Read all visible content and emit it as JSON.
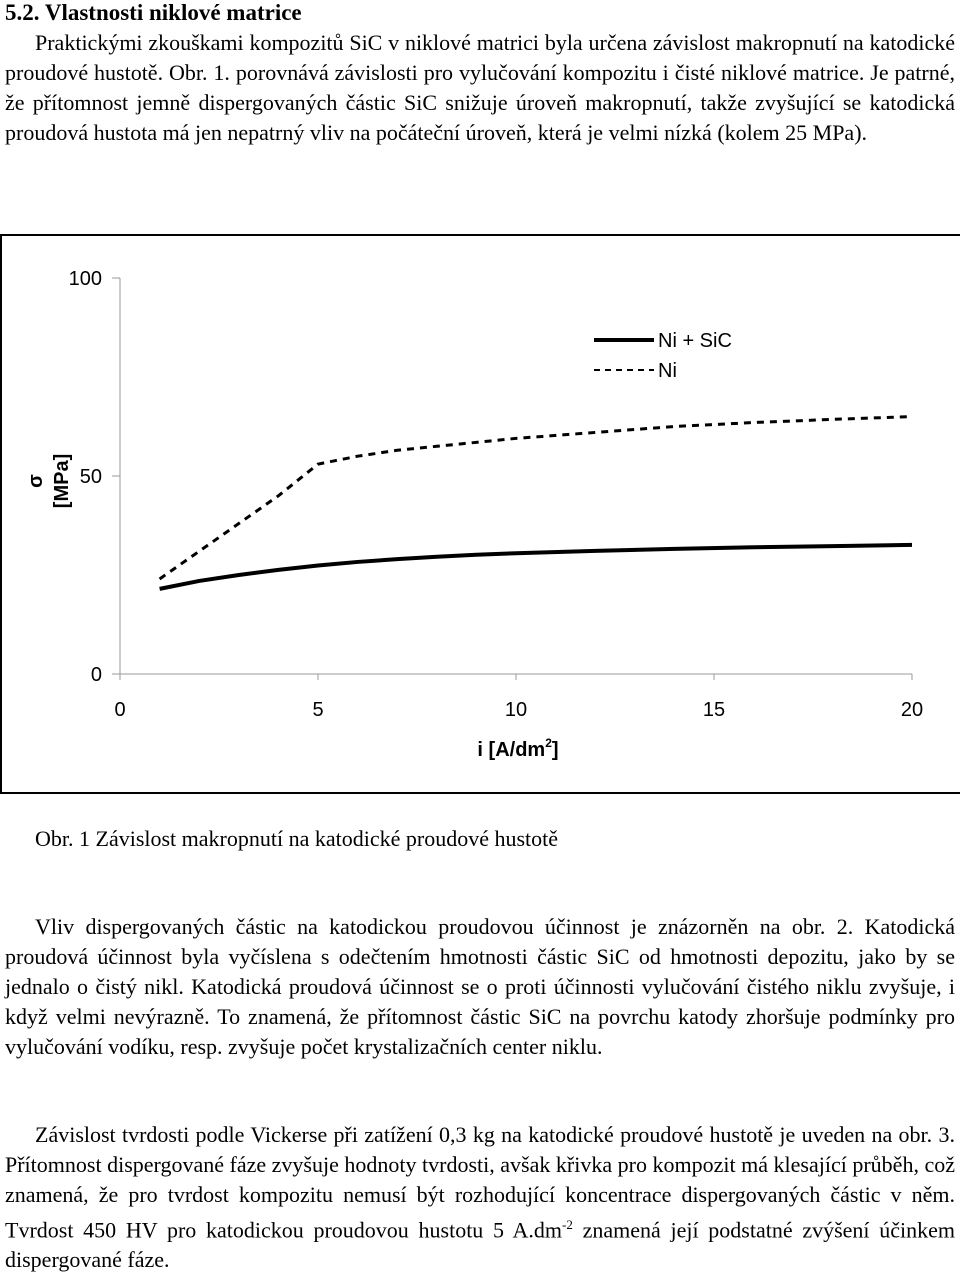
{
  "section": {
    "heading": "5.2. Vlastnosti niklové matrice"
  },
  "paragraphs": {
    "p1": "Praktickými zkouškami kompozitů SiC v niklové matrici byla určena závislost makropnutí na katodické proudové hustotě. Obr. 1. porovnává závislosti pro vylučování kompozitu i čisté niklové matrice. Je patrné, že přítomnost jemně dispergovaných částic SiC snižuje úroveň makropnutí, takže zvyšující se katodická proudová hustota má jen nepatrný vliv na počáteční úroveň, která je velmi nízká (kolem 25 MPa).",
    "p2": "Vliv dispergovaných částic na katodickou proudovou účinnost je znázorněn na obr. 2. Katodická proudová účinnost byla vyčíslena s odečtením hmotnosti částic SiC od hmotnosti depozitu, jako by se jednalo o čistý nikl. Katodická proudová účinnost se o proti účinnosti vylučování čistého niklu zvyšuje, i když velmi nevýrazně. To znamená, že přítomnost částic SiC na povrchu katody zhoršuje podmínky  pro vylučování vodíku, resp. zvyšuje počet krystalizačních center niklu.",
    "p3_main": "Závislost tvrdosti podle Vickerse při zatížení 0,3 kg na katodické proudové hustotě je uveden na obr. 3.  Přítomnost dispergované fáze zvyšuje hodnoty tvrdosti, avšak křivka pro kompozit má klesající průběh, což znamená, že pro tvrdost kompozitu nemusí být rozhodující koncentrace dispergovaných částic v něm. Tvrdost 450 HV pro katodickou proudovou hustotu 5 A.dm",
    "p3_sup": "-2",
    "p3_tail": " znamená její podstatné zvýšení účinkem dispergované fáze."
  },
  "figure": {
    "caption": "Obr. 1 Závislost makropnutí na katodické proudové hustotě"
  },
  "chart_data": {
    "type": "line",
    "xlabel_main": "i [A/dm",
    "xlabel_sup": "2",
    "xlabel_end": "]",
    "ylabel_symbol": "σ",
    "ylabel_unit": "[MPa]",
    "xlim": [
      0,
      20
    ],
    "ylim": [
      0,
      100
    ],
    "x_ticks": [
      "0",
      "5",
      "10",
      "15",
      "20"
    ],
    "y_ticks": [
      "0",
      "50",
      "100"
    ],
    "legend_position": "top-right",
    "series": [
      {
        "name": "Ni + SiC",
        "style": "solid",
        "x": [
          1,
          2,
          3,
          4,
          5,
          6,
          7,
          8,
          9,
          10,
          12,
          14,
          16,
          18,
          20
        ],
        "y": [
          21.5,
          23.5,
          25,
          26.3,
          27.4,
          28.3,
          29,
          29.6,
          30.1,
          30.5,
          31.1,
          31.6,
          32,
          32.3,
          32.6
        ]
      },
      {
        "name": "Ni",
        "style": "dashed",
        "x": [
          1,
          2,
          3,
          4,
          5,
          6,
          7,
          8,
          10,
          12,
          14,
          16,
          18,
          20
        ],
        "y": [
          24,
          31,
          38,
          45,
          53,
          55,
          56.5,
          57.5,
          59.5,
          61,
          62.5,
          63.5,
          64.3,
          65
        ]
      }
    ]
  }
}
